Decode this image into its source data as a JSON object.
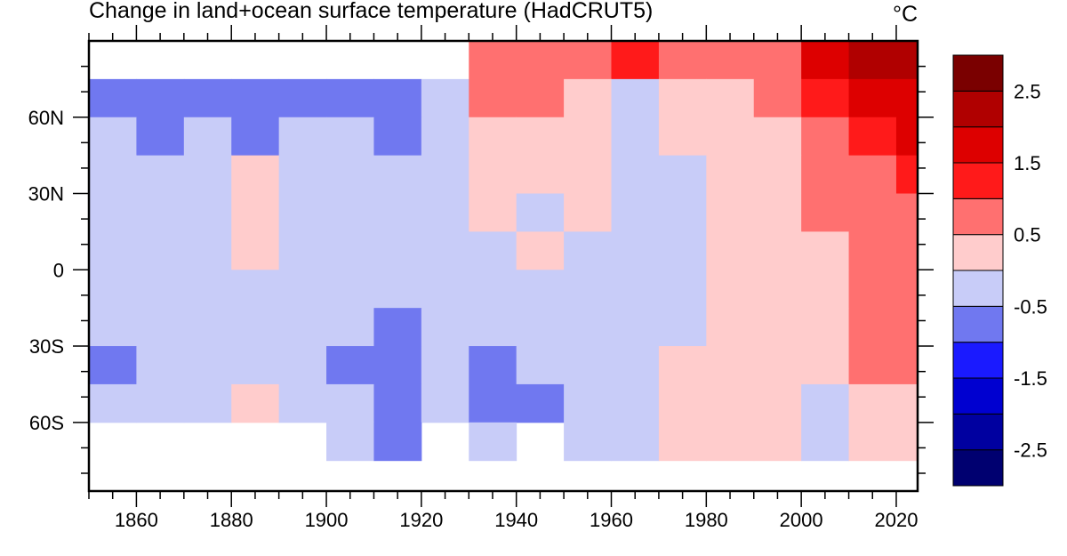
{
  "chart_data": {
    "type": "heatmap",
    "title": "Change in land+ocean surface temperature (HadCRUT5)",
    "unit": "°C",
    "xlim": [
      1850,
      2024.5
    ],
    "ylim": [
      -87,
      90
    ],
    "x_ticks": [
      1860,
      1880,
      1900,
      1920,
      1940,
      1960,
      1980,
      2000,
      2020
    ],
    "x_tick_labels": [
      "1860",
      "1880",
      "1900",
      "1920",
      "1940",
      "1960",
      "1980",
      "2000",
      "2020"
    ],
    "y_ticks": [
      60,
      30,
      0,
      -30,
      -60
    ],
    "y_tick_labels": [
      "60N",
      "30N",
      "0",
      "30S",
      "60S"
    ],
    "x_bins": [
      1850,
      1860,
      1870,
      1880,
      1890,
      1900,
      1910,
      1920,
      1930,
      1940,
      1950,
      1960,
      1970,
      1980,
      1990,
      2000,
      2010,
      2020
    ],
    "lat_bands": [
      [
        90,
        75
      ],
      [
        75,
        60
      ],
      [
        60,
        45
      ],
      [
        45,
        30
      ],
      [
        30,
        15
      ],
      [
        15,
        0
      ],
      [
        0,
        -15
      ],
      [
        -15,
        -30
      ],
      [
        -30,
        -45
      ],
      [
        -45,
        -60
      ],
      [
        -60,
        -75
      ],
      [
        -75,
        -90
      ]
    ],
    "values": [
      [
        null,
        null,
        null,
        null,
        null,
        null,
        null,
        null,
        0.75,
        0.75,
        0.75,
        1.25,
        0.75,
        0.75,
        0.75,
        1.75,
        2.25,
        2.25
      ],
      [
        -0.75,
        -0.75,
        -0.75,
        -0.75,
        -0.75,
        -0.75,
        -0.75,
        -0.25,
        0.75,
        0.75,
        0.25,
        -0.25,
        0.25,
        0.25,
        0.75,
        1.25,
        1.75,
        1.75
      ],
      [
        -0.25,
        -0.75,
        -0.25,
        -0.75,
        -0.25,
        -0.25,
        -0.75,
        -0.25,
        0.25,
        0.25,
        0.25,
        -0.25,
        0.25,
        0.25,
        0.25,
        0.75,
        1.25,
        1.75
      ],
      [
        -0.25,
        -0.25,
        -0.25,
        0.25,
        -0.25,
        -0.25,
        -0.25,
        -0.25,
        0.25,
        0.25,
        0.25,
        -0.25,
        -0.25,
        0.25,
        0.25,
        0.75,
        0.75,
        1.25
      ],
      [
        -0.25,
        -0.25,
        -0.25,
        0.25,
        -0.25,
        -0.25,
        -0.25,
        -0.25,
        0.25,
        -0.25,
        0.25,
        -0.25,
        -0.25,
        0.25,
        0.25,
        0.75,
        0.75,
        0.75
      ],
      [
        -0.25,
        -0.25,
        -0.25,
        0.25,
        -0.25,
        -0.25,
        -0.25,
        -0.25,
        -0.25,
        0.25,
        -0.25,
        -0.25,
        -0.25,
        0.25,
        0.25,
        0.25,
        0.75,
        0.75
      ],
      [
        -0.25,
        -0.25,
        -0.25,
        -0.25,
        -0.25,
        -0.25,
        -0.25,
        -0.25,
        -0.25,
        -0.25,
        -0.25,
        -0.25,
        -0.25,
        0.25,
        0.25,
        0.25,
        0.75,
        0.75
      ],
      [
        -0.25,
        -0.25,
        -0.25,
        -0.25,
        -0.25,
        -0.25,
        -0.75,
        -0.25,
        -0.25,
        -0.25,
        -0.25,
        -0.25,
        -0.25,
        0.25,
        0.25,
        0.25,
        0.75,
        0.75
      ],
      [
        -0.75,
        -0.25,
        -0.25,
        -0.25,
        -0.25,
        -0.75,
        -0.75,
        -0.25,
        -0.75,
        -0.25,
        -0.25,
        -0.25,
        0.25,
        0.25,
        0.25,
        0.25,
        0.75,
        0.75
      ],
      [
        -0.25,
        -0.25,
        -0.25,
        0.25,
        -0.25,
        -0.25,
        -0.75,
        -0.25,
        -0.75,
        -0.75,
        -0.25,
        -0.25,
        0.25,
        0.25,
        0.25,
        -0.25,
        0.25,
        0.25
      ],
      [
        null,
        null,
        null,
        null,
        null,
        -0.25,
        -0.75,
        null,
        -0.25,
        null,
        -0.25,
        -0.25,
        0.25,
        0.25,
        0.25,
        -0.25,
        0.25,
        0.25
      ],
      [
        null,
        null,
        null,
        null,
        null,
        null,
        null,
        null,
        null,
        null,
        null,
        null,
        null,
        null,
        null,
        null,
        null,
        null
      ]
    ],
    "colorbar": {
      "levels": [
        -3,
        -2.5,
        -2,
        -1.5,
        -1,
        -0.5,
        0,
        0.5,
        1,
        1.5,
        2,
        2.5,
        3
      ],
      "colors": [
        "#000070",
        "#0000a0",
        "#0000d0",
        "#1a1aff",
        "#7078f0",
        "#c8ccf8",
        "#ffcccc",
        "#ff7070",
        "#ff1a1a",
        "#dd0000",
        "#b00000",
        "#7a0000"
      ],
      "labels": [
        "2.5",
        "1.5",
        "0.5",
        "-0.5",
        "-1.5",
        "-2.5"
      ],
      "label_values": [
        2.5,
        1.5,
        0.5,
        -0.5,
        -1.5,
        -2.5
      ]
    },
    "missing_color": "#ffffff",
    "grid": false
  }
}
